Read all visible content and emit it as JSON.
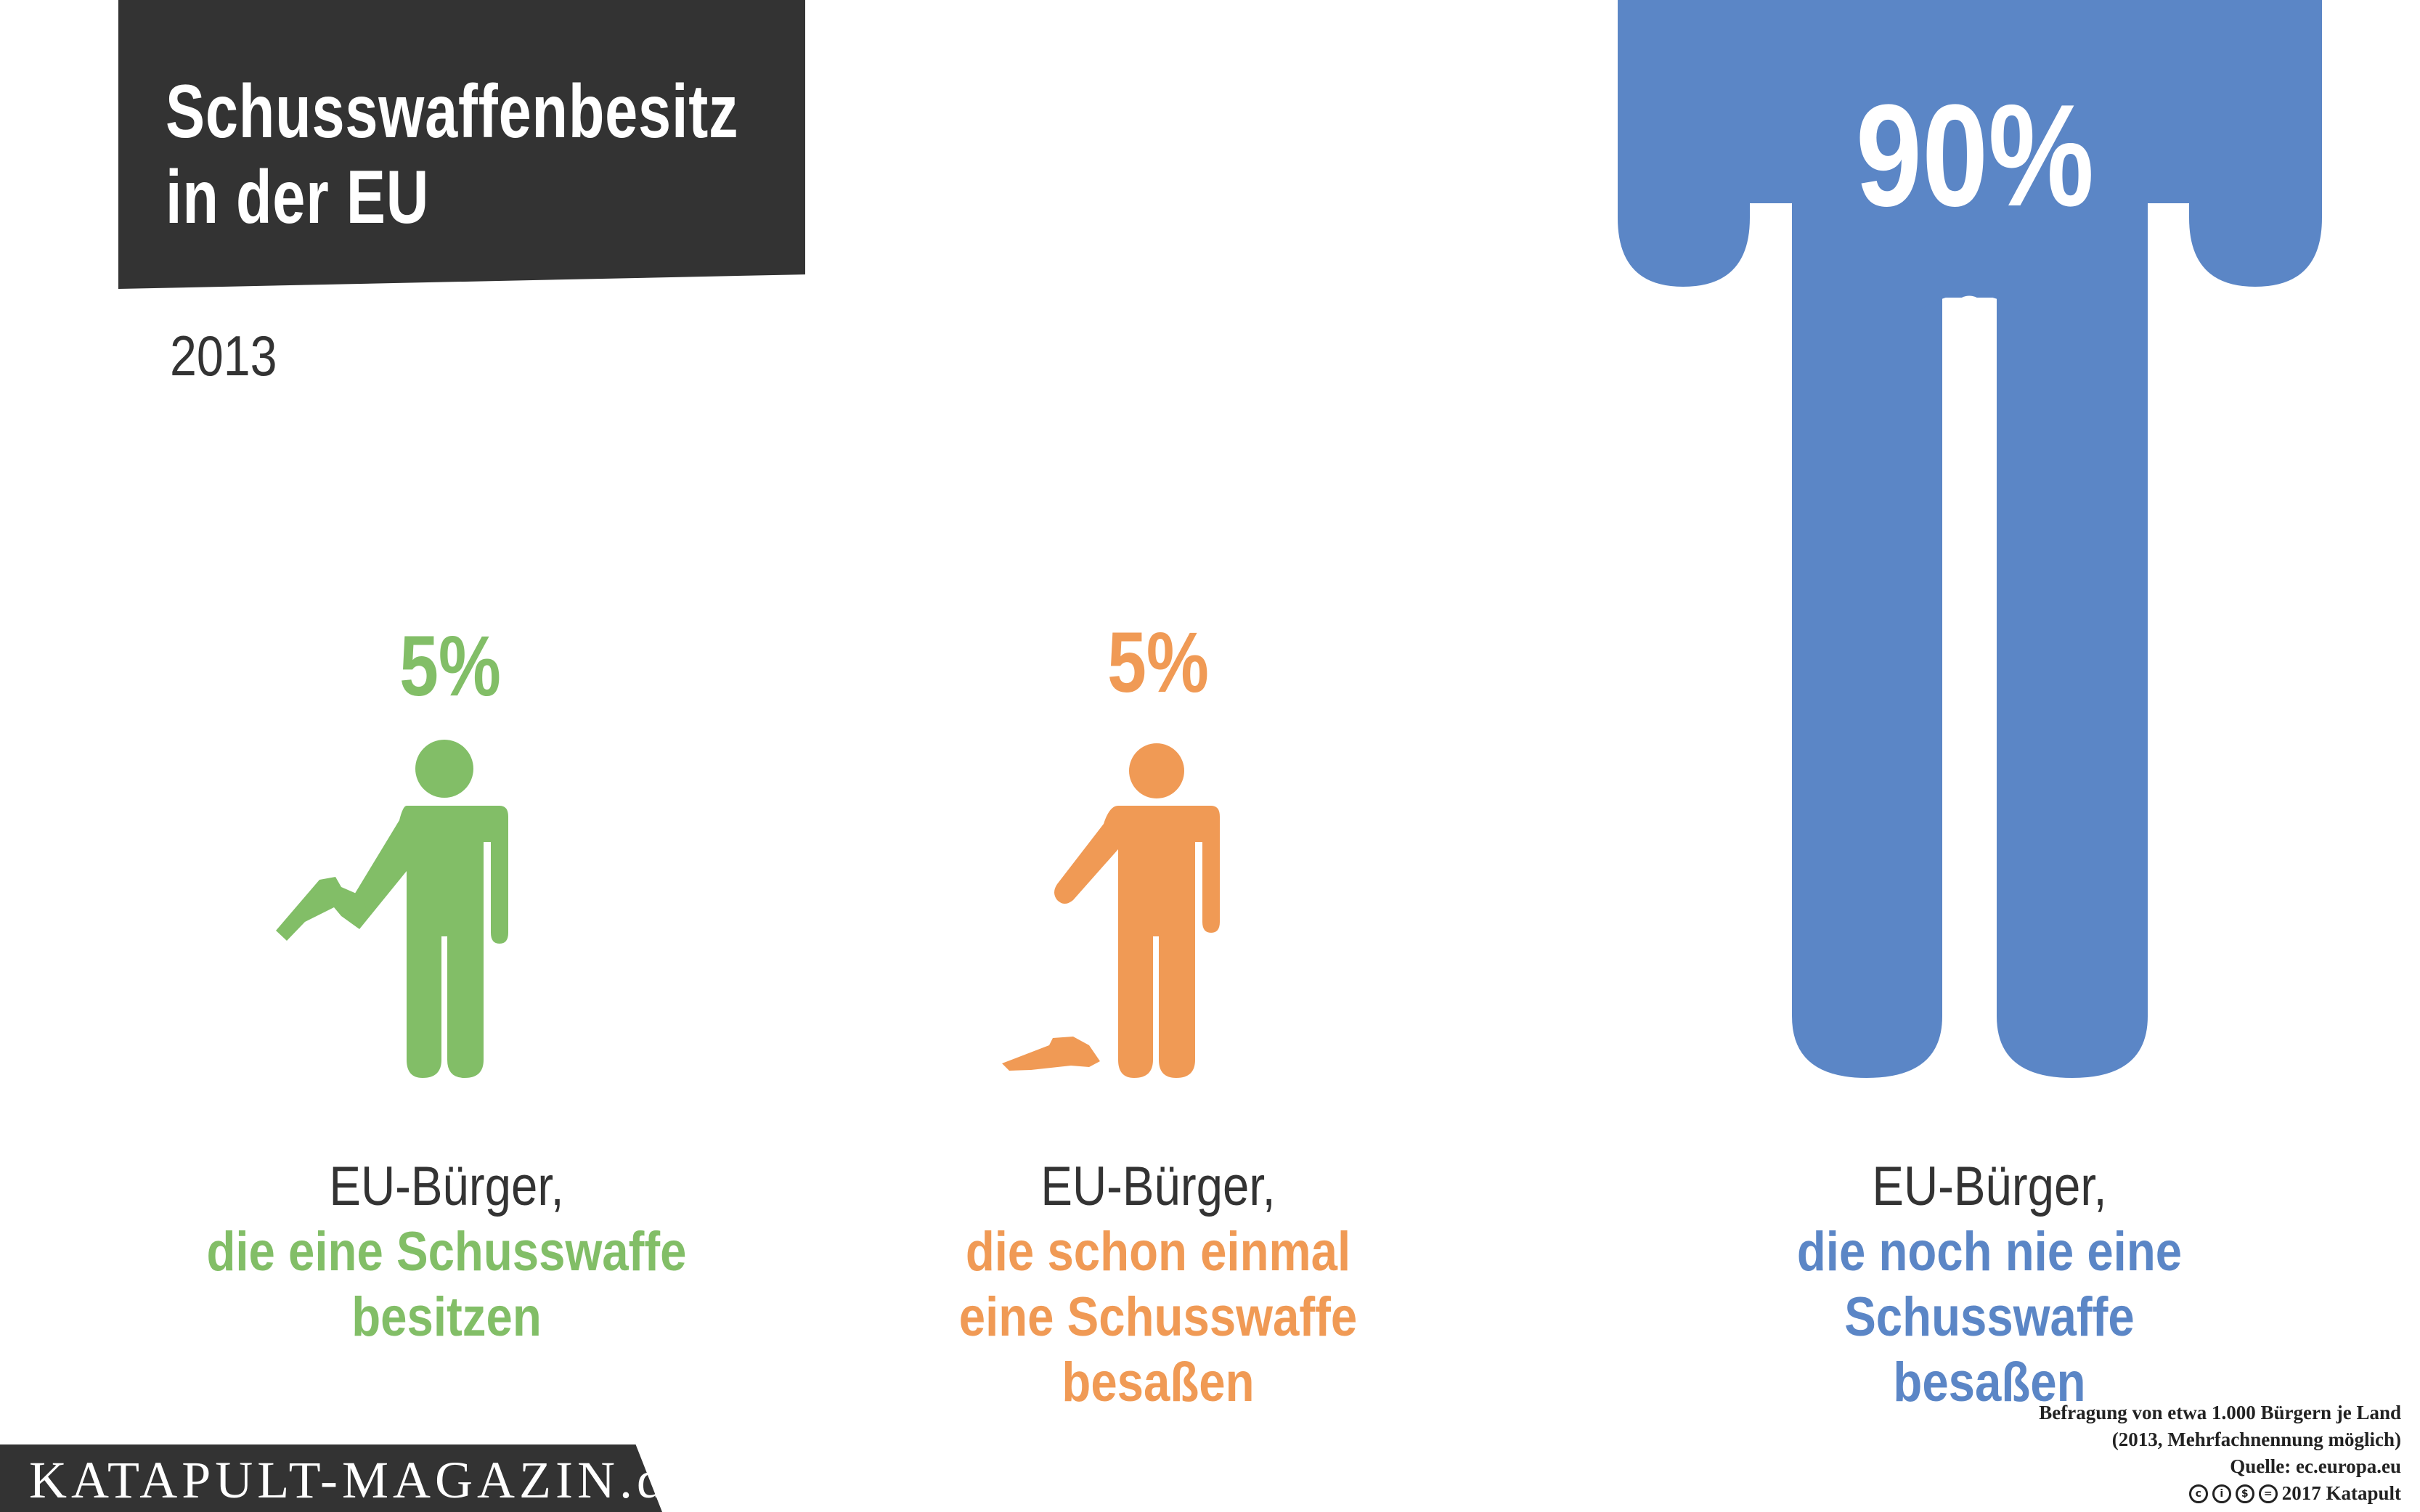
{
  "title": {
    "line1": "Schusswaffenbesitz",
    "line2": "in der EU"
  },
  "year": "2013",
  "chart_data": {
    "type": "pictogram",
    "unit": "%",
    "series": [
      {
        "value": 5,
        "label_value": "5%",
        "description_lead": "EU-Bürger,",
        "description_lines": [
          "die eine Schusswaffe",
          "besitzen"
        ],
        "color": "#82be67",
        "icon": "person-holding-gun-icon"
      },
      {
        "value": 5,
        "label_value": "5%",
        "description_lead": "EU-Bürger,",
        "description_lines": [
          "die schon einmal",
          "eine Schusswaffe",
          "besaßen"
        ],
        "color": "#f09a55",
        "icon": "person-dropped-gun-icon"
      },
      {
        "value": 90,
        "label_value": "90%",
        "description_lead": "EU-Bürger,",
        "description_lines": [
          "die noch nie eine Schusswaffe",
          "besaßen"
        ],
        "color": "#5b86c6",
        "icon": "person-icon"
      }
    ]
  },
  "source": {
    "line1": "Befragung von etwa 1.000 Bürgern je Land",
    "line2": "(2013, Mehrfachnennung möglich)",
    "line3": "Quelle: ec.europa.eu",
    "license": "2017 Katapult",
    "license_icons": [
      "cc-icon",
      "by-icon",
      "nc-icon",
      "nd-icon"
    ]
  },
  "brand": "KATAPULT-MAGAZIN.de"
}
